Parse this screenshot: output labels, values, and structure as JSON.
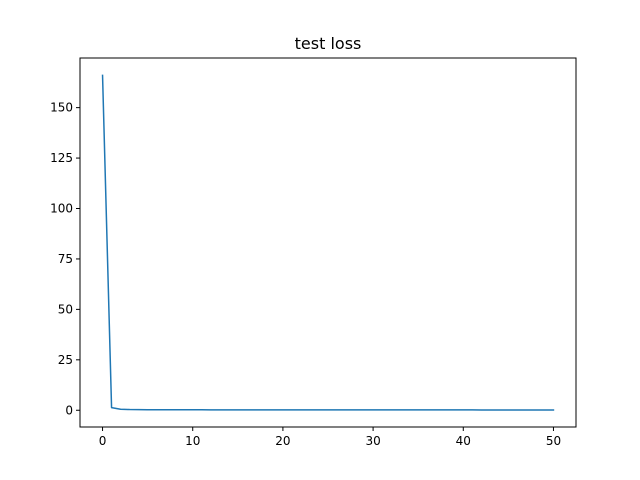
{
  "chart_data": {
    "type": "line",
    "title": "test loss",
    "xlabel": "",
    "ylabel": "",
    "xlim": [
      -2.5,
      52.5
    ],
    "ylim": [
      -8.3,
      174.6
    ],
    "x_ticks": [
      0,
      10,
      20,
      30,
      40,
      50
    ],
    "y_ticks": [
      0,
      25,
      50,
      75,
      100,
      125,
      150
    ],
    "grid": false,
    "legend": "none",
    "series": [
      {
        "color": "#1f77b4",
        "x": [
          0,
          1,
          2,
          3,
          4,
          5,
          6,
          7,
          8,
          9,
          10,
          11,
          12,
          13,
          14,
          15,
          16,
          17,
          18,
          19,
          20,
          21,
          22,
          23,
          24,
          25,
          26,
          27,
          28,
          29,
          30,
          31,
          32,
          33,
          34,
          35,
          36,
          37,
          38,
          39,
          40,
          41,
          42,
          43,
          44,
          45,
          46,
          47,
          48,
          49,
          50
        ],
        "values": [
          166,
          1.3,
          0.5,
          0.35,
          0.3,
          0.28,
          0.26,
          0.25,
          0.24,
          0.23,
          0.22,
          0.22,
          0.21,
          0.21,
          0.2,
          0.2,
          0.2,
          0.19,
          0.19,
          0.19,
          0.19,
          0.18,
          0.18,
          0.18,
          0.18,
          0.18,
          0.17,
          0.17,
          0.17,
          0.17,
          0.17,
          0.17,
          0.17,
          0.16,
          0.16,
          0.16,
          0.16,
          0.16,
          0.16,
          0.16,
          0.16,
          0.16,
          0.15,
          0.15,
          0.15,
          0.15,
          0.15,
          0.15,
          0.15,
          0.15,
          0.15
        ]
      }
    ]
  }
}
